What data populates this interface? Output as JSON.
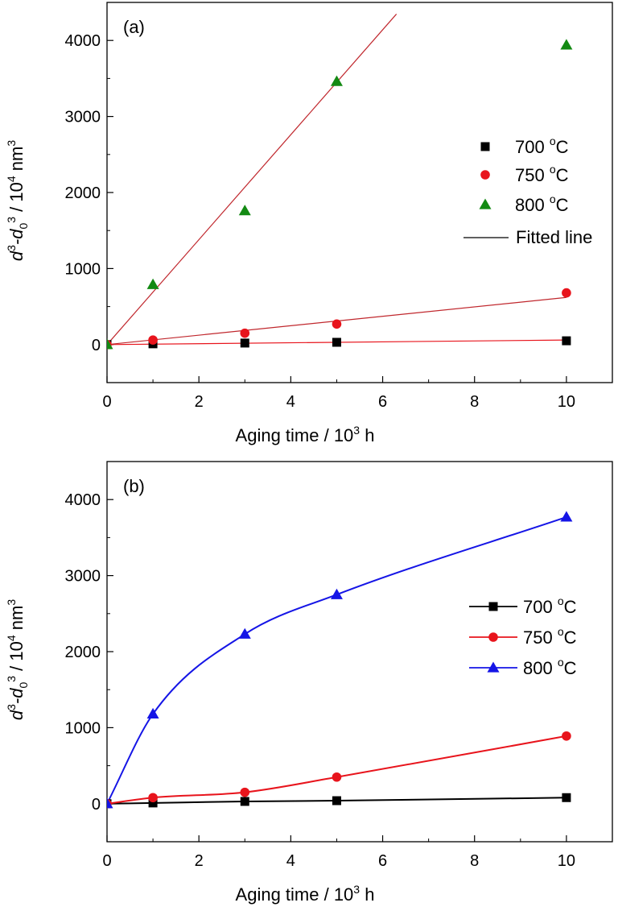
{
  "chart_data": [
    {
      "type": "scatter",
      "panel_label": "(a)",
      "xlabel": {
        "main": "Aging time / 10",
        "sup": "3",
        "tail": " h"
      },
      "ylabel": {
        "d": "d",
        "sup1": "3",
        "dash": "-d",
        "sub0": "0",
        "sup2": "3",
        "mid": " / 10",
        "sup3": "4",
        "unit": " nm",
        "sup4": "3"
      },
      "xlim": [
        0,
        11
      ],
      "ylim": [
        -500,
        4500
      ],
      "xticks": [
        0,
        2,
        4,
        6,
        8,
        10
      ],
      "yticks": [
        0,
        1000,
        2000,
        3000,
        4000
      ],
      "legend_position": "right",
      "series": [
        {
          "name": "700 °C",
          "label": {
            "value": "700 ",
            "sup": "o",
            "unit": "C"
          },
          "marker": "square",
          "color": "#000000",
          "x": [
            0,
            1,
            3,
            5,
            10
          ],
          "y": [
            0,
            10,
            20,
            30,
            50
          ]
        },
        {
          "name": "750 °C",
          "label": {
            "value": "750 ",
            "sup": "o",
            "unit": "C"
          },
          "marker": "circle",
          "color": "#e8141c",
          "x": [
            0,
            1,
            3,
            5,
            10
          ],
          "y": [
            0,
            60,
            150,
            270,
            680
          ]
        },
        {
          "name": "800 °C",
          "label": {
            "value": "800 ",
            "sup": "o",
            "unit": "C"
          },
          "marker": "triangle",
          "color": "#138a13",
          "x": [
            0,
            1,
            3,
            5,
            10
          ],
          "y": [
            0,
            790,
            1760,
            3460,
            3940
          ]
        }
      ],
      "fitted_lines": [
        {
          "color": "#e8141c",
          "slope": 6,
          "x_range": [
            0,
            10
          ]
        },
        {
          "color": "#c0272d",
          "slope": 62,
          "x_range": [
            0,
            10
          ]
        },
        {
          "color": "#c0272d",
          "slope": 690,
          "x_range": [
            0,
            6.3
          ]
        }
      ],
      "fitted_legend_label": "Fitted line"
    },
    {
      "type": "line",
      "panel_label": "(b)",
      "xlabel": {
        "main": "Aging time / 10",
        "sup": "3",
        "tail": " h"
      },
      "ylabel": {
        "d": "d",
        "sup1": "3",
        "dash": "-d",
        "sub0": "0",
        "sup2": "3",
        "mid": " / 10",
        "sup3": "4",
        "unit": " nm",
        "sup4": "3"
      },
      "xlim": [
        0,
        11
      ],
      "ylim": [
        -500,
        4500
      ],
      "xticks": [
        0,
        2,
        4,
        6,
        8,
        10
      ],
      "yticks": [
        0,
        1000,
        2000,
        3000,
        4000
      ],
      "legend_position": "right",
      "series": [
        {
          "name": "700 °C",
          "label": {
            "value": "700 ",
            "sup": "o",
            "unit": "C"
          },
          "marker": "square",
          "color": "#000000",
          "x": [
            0,
            1,
            3,
            5,
            10
          ],
          "y": [
            0,
            10,
            30,
            40,
            80
          ]
        },
        {
          "name": "750 °C",
          "label": {
            "value": "750 ",
            "sup": "o",
            "unit": "C"
          },
          "marker": "circle",
          "color": "#e8141c",
          "x": [
            0,
            1,
            3,
            5,
            10
          ],
          "y": [
            0,
            80,
            150,
            350,
            890
          ]
        },
        {
          "name": "800 °C",
          "label": {
            "value": "800 ",
            "sup": "o",
            "unit": "C"
          },
          "marker": "triangle",
          "color": "#1515e6",
          "x": [
            0,
            1,
            3,
            5,
            10
          ],
          "y": [
            0,
            1180,
            2230,
            2750,
            3770
          ]
        }
      ]
    }
  ]
}
